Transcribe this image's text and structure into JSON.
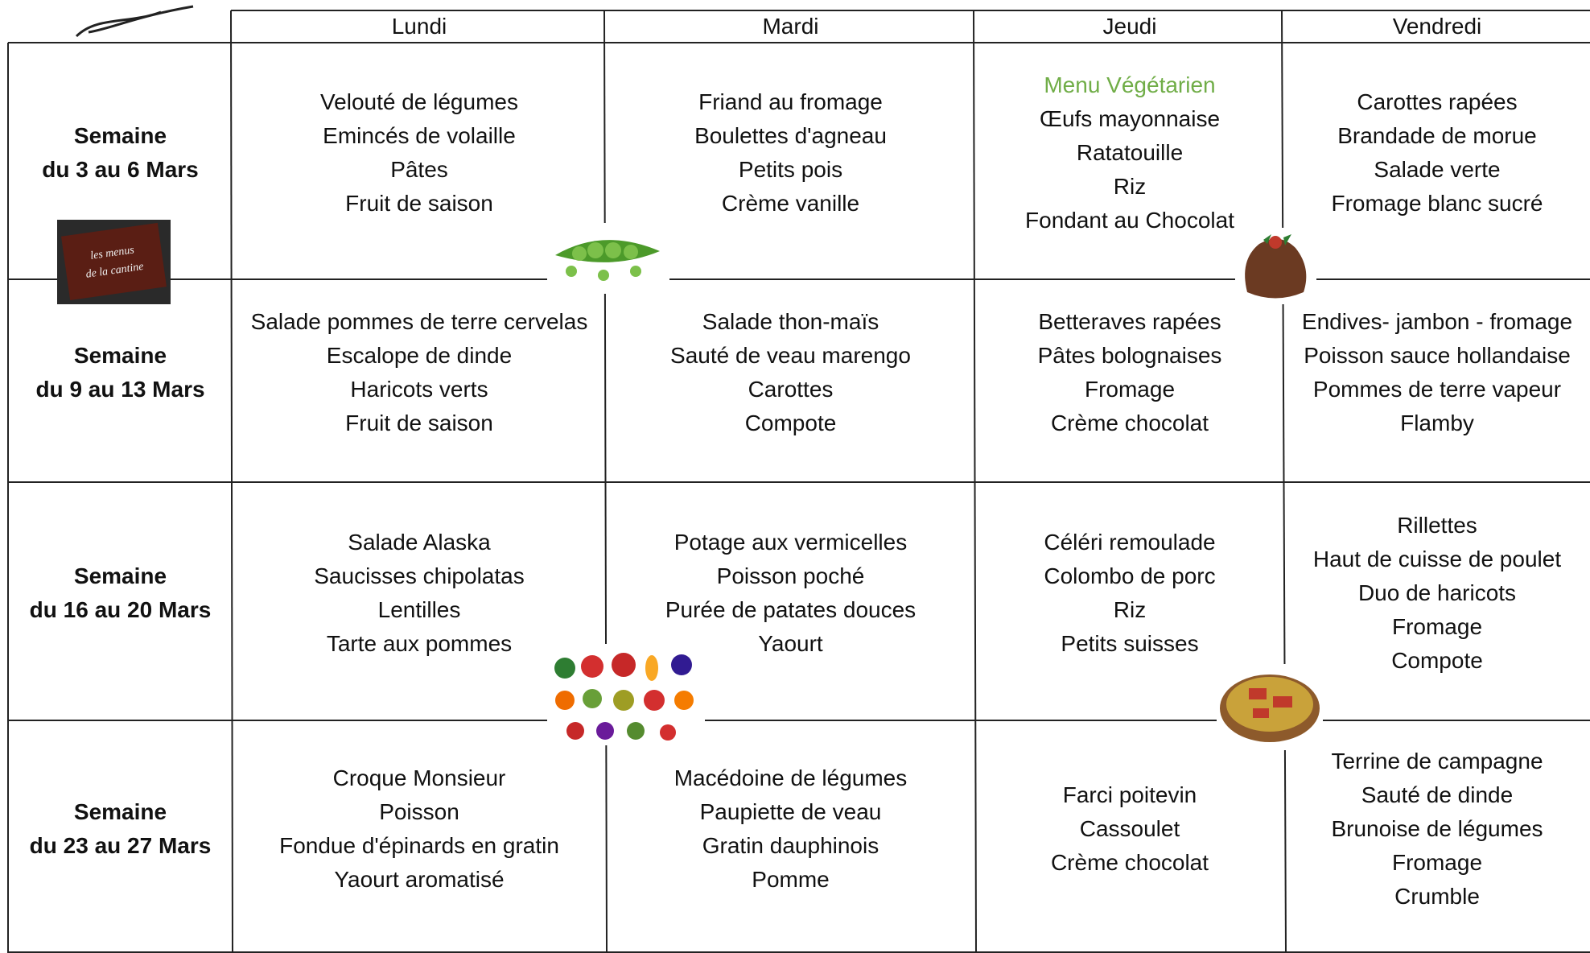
{
  "header": {
    "days": [
      "Lundi",
      "Mardi",
      "Jeudi",
      "Vendredi"
    ]
  },
  "badge": {
    "text": [
      "les menus",
      "de la cantine"
    ]
  },
  "weeks": [
    {
      "label": [
        "Semaine",
        "du 3 au 6 Mars"
      ],
      "days": [
        {
          "items": [
            "Velouté de légumes",
            "Emincés de volaille",
            "Pâtes",
            "Fruit de saison"
          ]
        },
        {
          "items": [
            "Friand au fromage",
            "Boulettes d'agneau",
            "Petits pois",
            "Crème vanille"
          ]
        },
        {
          "note": "Menu Végétarien",
          "items": [
            "Œufs mayonnaise",
            "Ratatouille",
            "Riz",
            "Fondant au Chocolat"
          ]
        },
        {
          "items": [
            "Carottes rapées",
            "Brandade de morue",
            "Salade verte",
            "Fromage blanc sucré"
          ]
        }
      ]
    },
    {
      "label": [
        "Semaine",
        "du 9 au 13 Mars"
      ],
      "days": [
        {
          "items": [
            "Salade pommes de terre cervelas",
            "Escalope de dinde",
            "Haricots verts",
            "Fruit de saison"
          ]
        },
        {
          "items": [
            "Salade thon-maïs",
            "Sauté de veau marengo",
            "Carottes",
            "Compote"
          ]
        },
        {
          "items": [
            "Betteraves rapées",
            "Pâtes bolognaises",
            "Fromage",
            "Crème chocolat"
          ]
        },
        {
          "items": [
            "Endives- jambon - fromage",
            "Poisson sauce hollandaise",
            "Pommes de terre vapeur",
            "Flamby"
          ]
        }
      ]
    },
    {
      "label": [
        "Semaine",
        "du 16 au 20 Mars"
      ],
      "days": [
        {
          "items": [
            "Salade Alaska",
            "Saucisses chipolatas",
            "Lentilles",
            "Tarte aux pommes"
          ]
        },
        {
          "items": [
            "Potage aux vermicelles",
            "Poisson poché",
            "Purée de patates douces",
            "Yaourt"
          ]
        },
        {
          "items": [
            "Céléri remoulade",
            "Colombo de porc",
            "Riz",
            "Petits suisses"
          ]
        },
        {
          "items": [
            "Rillettes",
            "Haut de cuisse de poulet",
            "Duo de haricots",
            "Fromage",
            "Compote"
          ]
        }
      ]
    },
    {
      "label": [
        "Semaine",
        "du 23 au 27 Mars"
      ],
      "days": [
        {
          "items": [
            "Croque Monsieur",
            "Poisson",
            "Fondue d'épinards en gratin",
            "Yaourt aromatisé"
          ]
        },
        {
          "items": [
            "Macédoine de légumes",
            "Paupiette de veau",
            "Gratin dauphinois",
            "Pomme"
          ]
        },
        {
          "items": [
            "Farci poitevin",
            "Cassoulet",
            "Crème chocolat"
          ]
        },
        {
          "items": [
            "Terrine de campagne",
            "Sauté de dinde",
            "Brunoise de légumes",
            "Fromage",
            "Crumble"
          ]
        }
      ]
    }
  ]
}
